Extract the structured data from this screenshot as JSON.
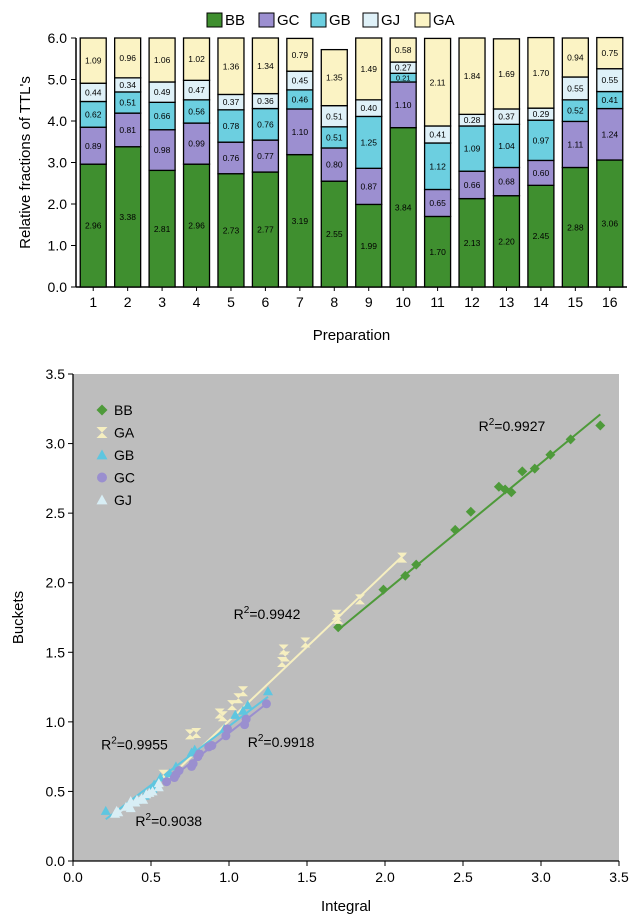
{
  "chart_data": [
    {
      "type": "bar",
      "stacked": true,
      "title": "",
      "xlabel": "Preparation",
      "ylabel": "Relative fractions of TTL's",
      "ylim": [
        0,
        6
      ],
      "yticks": [
        "0.0",
        "1.0",
        "2.0",
        "3.0",
        "4.0",
        "5.0",
        "6.0"
      ],
      "categories": [
        "1",
        "2",
        "3",
        "4",
        "5",
        "6",
        "7",
        "8",
        "9",
        "10",
        "11",
        "12",
        "13",
        "14",
        "15",
        "16"
      ],
      "legend_position": "top",
      "series": [
        {
          "name": "BB",
          "color": "#3f8f2f",
          "values": [
            2.96,
            3.38,
            2.81,
            2.96,
            2.73,
            2.77,
            3.19,
            2.55,
            1.99,
            3.84,
            1.7,
            2.13,
            2.2,
            2.45,
            2.88,
            3.06
          ],
          "labels": [
            "2.96",
            "3.38",
            "2.81",
            "2.96",
            "2.73",
            "2.77",
            "3.19",
            "2.55",
            "1.99",
            "3.84",
            "1.70",
            "2.13",
            "2.20",
            "2.45",
            "2.88",
            "3.06"
          ]
        },
        {
          "name": "GC",
          "color": "#9c8fd0",
          "values": [
            0.89,
            0.81,
            0.98,
            0.99,
            0.76,
            0.77,
            1.1,
            0.8,
            0.87,
            1.1,
            0.65,
            0.66,
            0.68,
            0.6,
            1.11,
            1.24
          ],
          "labels": [
            "0.89",
            "0.81",
            "0.98",
            "0.99",
            "0.76",
            "0.77",
            "1.10",
            "0.80",
            "0.87",
            "1.10",
            "0.65",
            "0.66",
            "0.68",
            "0.60",
            "1.11",
            "1.24"
          ]
        },
        {
          "name": "GB",
          "color": "#6ccfe0",
          "values": [
            0.62,
            0.51,
            0.66,
            0.56,
            0.78,
            0.76,
            0.46,
            0.51,
            1.25,
            0.21,
            1.12,
            1.09,
            1.04,
            0.97,
            0.52,
            0.41
          ],
          "labels": [
            "0.62",
            "0.51",
            "0.66",
            "0.56",
            "0.78",
            "0.76",
            "0.46",
            "0.51",
            "1.25",
            "0.21",
            "1.12",
            "1.09",
            "1.04",
            "0.97",
            "0.52",
            "0.41"
          ]
        },
        {
          "name": "GJ",
          "color": "#dff1f8",
          "values": [
            0.44,
            0.34,
            0.49,
            0.47,
            0.37,
            0.36,
            0.45,
            0.51,
            0.4,
            0.27,
            0.41,
            0.28,
            0.37,
            0.29,
            0.55,
            0.55
          ],
          "labels": [
            "0.44",
            "0.34",
            "0.49",
            "0.47",
            "0.37",
            "0.36",
            "0.45",
            "0.51",
            "0.40",
            "0.27",
            "0.41",
            "0.28",
            "0.37",
            "0.29",
            "0.55",
            "0.55"
          ]
        },
        {
          "name": "GA",
          "color": "#fbf3c4",
          "values": [
            1.09,
            0.96,
            1.06,
            1.02,
            1.36,
            1.34,
            0.79,
            1.35,
            1.49,
            0.58,
            2.11,
            1.84,
            1.69,
            1.7,
            0.94,
            0.75
          ],
          "labels": [
            "1.09",
            "0.96",
            "1.06",
            "1.02",
            "1.36",
            "1.34",
            "0.79",
            "1.35",
            "1.49",
            "0.58",
            "2.11",
            "1.84",
            "1.69",
            "1.70",
            "0.94",
            "0.75"
          ]
        }
      ]
    },
    {
      "type": "scatter",
      "title": "",
      "xlabel": "Integral",
      "ylabel": "Buckets",
      "xlim": [
        0,
        3.5
      ],
      "ylim": [
        0,
        3.5
      ],
      "xticks": [
        "0.0",
        "0.5",
        "1.0",
        "1.5",
        "2.0",
        "2.5",
        "3.0",
        "3.5"
      ],
      "yticks": [
        "0.0",
        "0.5",
        "1.0",
        "1.5",
        "2.0",
        "2.5",
        "3.0",
        "3.5"
      ],
      "background": "#bdbdbd",
      "legend_position": "top-left",
      "series": [
        {
          "name": "BB",
          "marker": "diamond",
          "color": "#4e9a3a",
          "x": [
            1.7,
            1.99,
            2.13,
            2.2,
            2.45,
            2.55,
            2.73,
            2.77,
            2.81,
            2.88,
            2.96,
            3.06,
            3.19,
            3.38
          ],
          "y": [
            1.68,
            1.95,
            2.05,
            2.13,
            2.38,
            2.51,
            2.69,
            2.67,
            2.65,
            2.8,
            2.82,
            2.92,
            3.03,
            3.13
          ],
          "fit": [
            [
              1.7,
              1.66
            ],
            [
              3.38,
              3.21
            ]
          ]
        },
        {
          "name": "GA",
          "marker": "bowtie",
          "color": "#f6efc0",
          "x": [
            0.58,
            0.75,
            0.79,
            0.94,
            0.96,
            1.02,
            1.06,
            1.09,
            1.34,
            1.35,
            1.36,
            1.49,
            1.69,
            1.7,
            1.84,
            2.11
          ],
          "y": [
            0.62,
            0.91,
            0.92,
            1.06,
            1.04,
            1.12,
            1.17,
            1.22,
            1.43,
            1.52,
            1.47,
            1.57,
            1.77,
            1.74,
            1.88,
            2.18
          ],
          "fit": [
            [
              0.58,
              0.56
            ],
            [
              2.13,
              2.21
            ]
          ]
        },
        {
          "name": "GB",
          "marker": "triangle",
          "color": "#5ec6e0",
          "x": [
            0.21,
            0.41,
            0.46,
            0.51,
            0.52,
            0.56,
            0.62,
            0.66,
            0.76,
            0.78,
            0.97,
            1.04,
            1.09,
            1.12,
            1.25
          ],
          "y": [
            0.36,
            0.44,
            0.47,
            0.52,
            0.55,
            0.6,
            0.63,
            0.68,
            0.78,
            0.8,
            0.95,
            1.05,
            1.08,
            1.12,
            1.22
          ],
          "fit": [
            [
              0.21,
              0.3
            ],
            [
              1.25,
              1.18
            ]
          ]
        },
        {
          "name": "GC",
          "marker": "circle",
          "color": "#9a8fcf",
          "x": [
            0.6,
            0.65,
            0.66,
            0.68,
            0.76,
            0.77,
            0.8,
            0.81,
            0.87,
            0.89,
            0.98,
            0.99,
            1.1,
            1.11,
            1.24
          ],
          "y": [
            0.57,
            0.6,
            0.62,
            0.65,
            0.68,
            0.7,
            0.75,
            0.77,
            0.82,
            0.83,
            0.9,
            0.95,
            0.98,
            1.02,
            1.13
          ],
          "fit": [
            [
              0.6,
              0.57
            ],
            [
              1.24,
              1.13
            ]
          ]
        },
        {
          "name": "GJ",
          "marker": "triangle",
          "color": "#d8eef5",
          "x": [
            0.27,
            0.28,
            0.29,
            0.34,
            0.36,
            0.37,
            0.37,
            0.4,
            0.41,
            0.44,
            0.45,
            0.47,
            0.49,
            0.51,
            0.55,
            0.55
          ],
          "y": [
            0.34,
            0.36,
            0.35,
            0.39,
            0.4,
            0.38,
            0.43,
            0.42,
            0.44,
            0.45,
            0.44,
            0.48,
            0.49,
            0.5,
            0.53,
            0.56
          ],
          "fit": [
            [
              0.27,
              0.33
            ],
            [
              0.55,
              0.55
            ]
          ]
        }
      ],
      "annotations": [
        {
          "text": "R²=0.9927",
          "x": 2.6,
          "y": 3.09
        },
        {
          "text": "R²=0.9942",
          "x": 1.03,
          "y": 1.74
        },
        {
          "text": "R²=0.9955",
          "x": 0.18,
          "y": 0.8
        },
        {
          "text": "R²=0.9918",
          "x": 1.12,
          "y": 0.82
        },
        {
          "text": "R²=0.9038",
          "x": 0.4,
          "y": 0.25
        }
      ]
    }
  ]
}
